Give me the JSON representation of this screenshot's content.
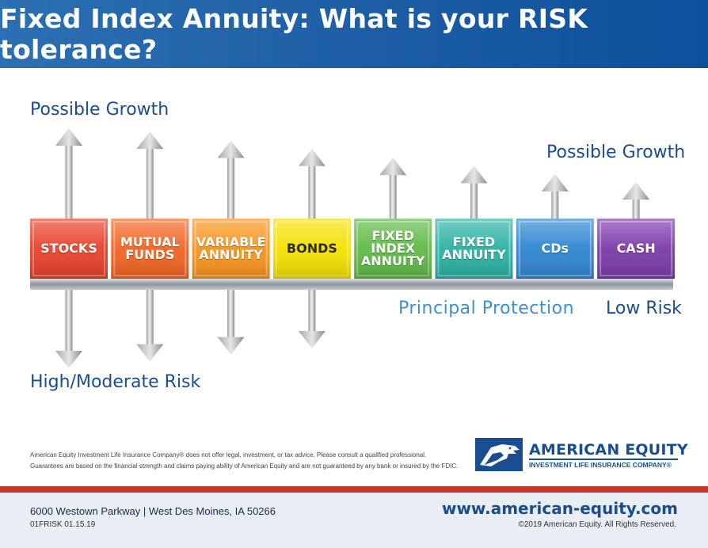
{
  "header": {
    "title": "Fixed Index Annuity: What is your RISK tolerance?"
  },
  "labels": {
    "growth_left": "Possible Growth",
    "growth_right": "Possible Growth",
    "risk_high": "High/Moderate Risk",
    "principal": "Principal Protection",
    "risk_low": "Low Risk"
  },
  "products": [
    {
      "label": "STOCKS",
      "color": "#e8402a",
      "growth": 1.0,
      "risk": 1.0
    },
    {
      "label": "MUTUAL\nFUNDS",
      "color": "#f26322",
      "growth": 0.96,
      "risk": 0.88
    },
    {
      "label": "VARIABLE\nANNUITY",
      "color": "#f7941d",
      "growth": 0.85,
      "risk": 0.75
    },
    {
      "label": "BONDS",
      "color": "#f5e000",
      "growth": 0.75,
      "risk": 0.64
    },
    {
      "label": "FIXED\nINDEX\nANNUITY",
      "color": "#5fb946",
      "growth": 0.64,
      "risk": 0
    },
    {
      "label": "FIXED\nANNUITY",
      "color": "#2bb1a3",
      "growth": 0.54,
      "risk": 0
    },
    {
      "label": "CDs",
      "color": "#2e86d0",
      "growth": 0.44,
      "risk": 0
    },
    {
      "label": "CASH",
      "color": "#7b3aa8",
      "growth": 0.34,
      "risk": 0
    }
  ],
  "disclaimer": {
    "line1": "American Equity Investment Life Insurance Company® does not offer legal, investment, or tax advice. Please consult a qualified professional.",
    "line2": "Guarantees are based on the financial strength and claims paying ability of American Equity and are not guaranteed by any bank or insured by the FDIC."
  },
  "logo": {
    "name": "AMERICAN EQUITY",
    "subtitle": "INVESTMENT LIFE INSURANCE COMPANY®"
  },
  "footer": {
    "address": "6000 Westown Parkway | West Des Moines, IA 50266",
    "code": "01FRISK 01.15.19",
    "website": "www.american-equity.com",
    "copyright": "©2019 American Equity. All Rights Reserved."
  }
}
